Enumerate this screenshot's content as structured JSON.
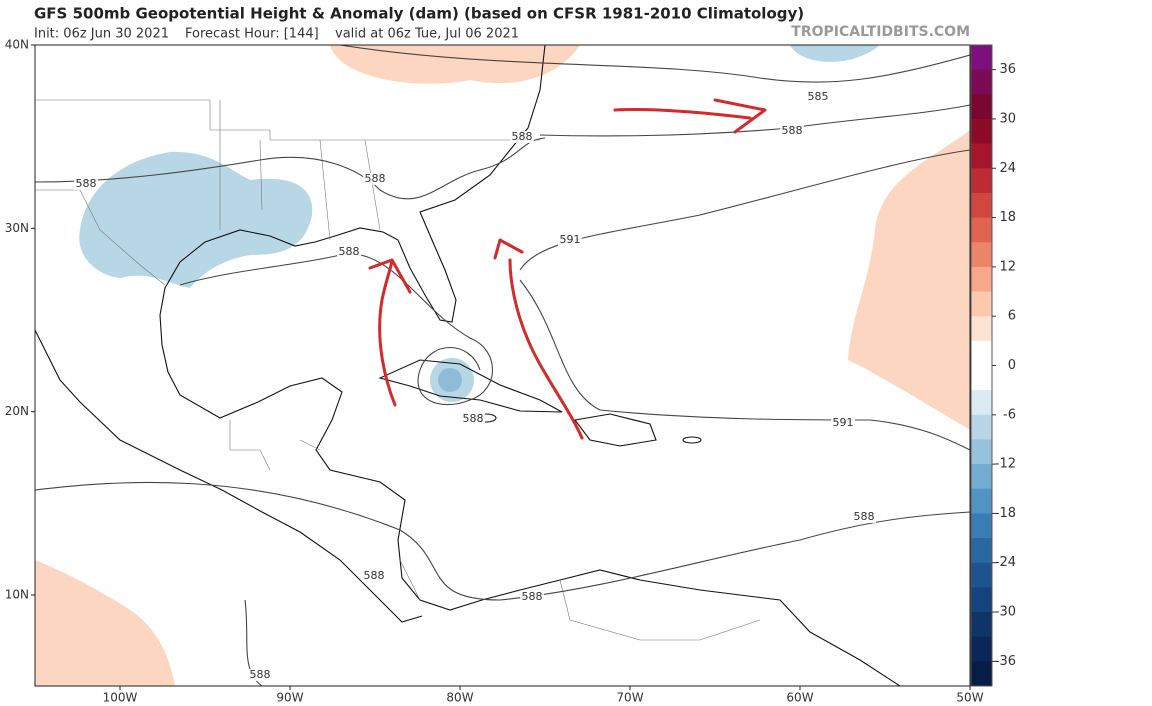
{
  "header": {
    "title": "GFS 500mb Geopotential Height & Anomaly (dam) (based on CFSR 1981-2010 Climatology)",
    "init": "Init: 06z Jun 30 2021",
    "forecast": "Forecast Hour: [144]",
    "valid": "valid at 06z Tue, Jul 06 2021",
    "credit": "TROPICALTIDBITS.COM"
  },
  "map": {
    "lat_labels": [
      "40N",
      "30N",
      "20N",
      "10N"
    ],
    "lon_labels": [
      "100W",
      "90W",
      "80W",
      "70W",
      "60W",
      "50W"
    ],
    "contour_labels": [
      585,
      588,
      588,
      588,
      588,
      591,
      588,
      588,
      591,
      588,
      588,
      588,
      588
    ]
  },
  "colorbar": {
    "ticks": [
      36,
      30,
      24,
      18,
      12,
      6,
      0,
      -6,
      -12,
      -18,
      -24,
      -30,
      -36
    ]
  }
}
